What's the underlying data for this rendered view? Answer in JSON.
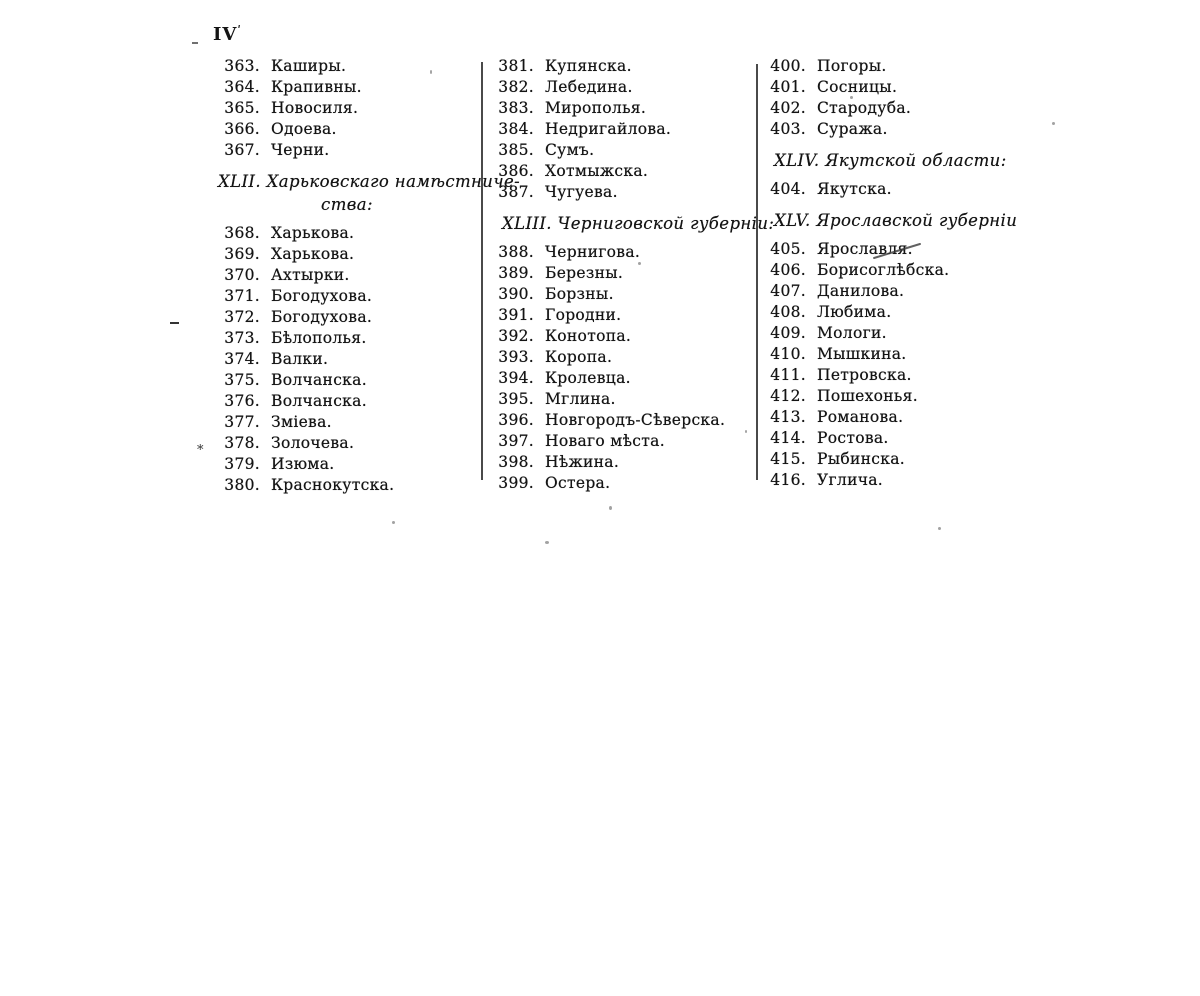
{
  "page": {
    "number": "IV"
  },
  "marginalia": {
    "asterisk": "*"
  },
  "columns": [
    {
      "items": [
        {
          "type": "entry",
          "num": "363.",
          "name": "Каширы."
        },
        {
          "type": "entry",
          "num": "364.",
          "name": "Крапивны."
        },
        {
          "type": "entry",
          "num": "365.",
          "name": "Новосиля."
        },
        {
          "type": "entry",
          "num": "366.",
          "name": "Одоева."
        },
        {
          "type": "entry",
          "num": "367.",
          "name": "Черни."
        },
        {
          "type": "header",
          "line1": "XLII. Харьковскаго намѣстниче-",
          "line2": "ства:"
        },
        {
          "type": "entry",
          "num": "368.",
          "name": "Харькова."
        },
        {
          "type": "entry",
          "num": "369.",
          "name": "Харькова."
        },
        {
          "type": "entry",
          "num": "370.",
          "name": "Ахтырки."
        },
        {
          "type": "entry",
          "num": "371.",
          "name": "Богодухова."
        },
        {
          "type": "entry",
          "num": "372.",
          "name": "Богодухова."
        },
        {
          "type": "entry",
          "num": "373.",
          "name": "Бѣлополья."
        },
        {
          "type": "entry",
          "num": "374.",
          "name": "Валки."
        },
        {
          "type": "entry",
          "num": "375.",
          "name": "Волчанска."
        },
        {
          "type": "entry",
          "num": "376.",
          "name": "Волчанска."
        },
        {
          "type": "entry",
          "num": "377.",
          "name": "Зміева."
        },
        {
          "type": "entry",
          "num": "378.",
          "name": "Золочева."
        },
        {
          "type": "entry",
          "num": "379.",
          "name": "Изюма."
        },
        {
          "type": "entry",
          "num": "380.",
          "name": "Краснокутска."
        }
      ]
    },
    {
      "items": [
        {
          "type": "entry",
          "num": "381.",
          "name": "Купянска."
        },
        {
          "type": "entry",
          "num": "382.",
          "name": "Лебедина."
        },
        {
          "type": "entry",
          "num": "383.",
          "name": "Мирополья."
        },
        {
          "type": "entry",
          "num": "384.",
          "name": "Недригайлова."
        },
        {
          "type": "entry",
          "num": "385.",
          "name": "Сумъ."
        },
        {
          "type": "entry",
          "num": "386.",
          "name": "Хотмыжска."
        },
        {
          "type": "entry",
          "num": "387.",
          "name": "Чугуева."
        },
        {
          "type": "header",
          "line1": "XLIII. Черниговской губерніи:"
        },
        {
          "type": "entry",
          "num": "388.",
          "name": "Чернигова."
        },
        {
          "type": "entry",
          "num": "389.",
          "name": "Березны."
        },
        {
          "type": "entry",
          "num": "390.",
          "name": "Борзны."
        },
        {
          "type": "entry",
          "num": "391.",
          "name": "Городни."
        },
        {
          "type": "entry",
          "num": "392.",
          "name": "Конотопа."
        },
        {
          "type": "entry",
          "num": "393.",
          "name": "Коропа."
        },
        {
          "type": "entry",
          "num": "394.",
          "name": "Кролевца."
        },
        {
          "type": "entry",
          "num": "395.",
          "name": "Мглина."
        },
        {
          "type": "entry",
          "num": "396.",
          "name": "Новгородъ-Сѣверска."
        },
        {
          "type": "entry",
          "num": "397.",
          "name": "Новаго мѣста."
        },
        {
          "type": "entry",
          "num": "398.",
          "name": "Нѣжина."
        },
        {
          "type": "entry",
          "num": "399.",
          "name": "Остера."
        }
      ]
    },
    {
      "items": [
        {
          "type": "entry",
          "num": "400.",
          "name": "Погоры."
        },
        {
          "type": "entry",
          "num": "401.",
          "name": "Сосницы."
        },
        {
          "type": "entry",
          "num": "402.",
          "name": "Стародуба."
        },
        {
          "type": "entry",
          "num": "403.",
          "name": "Суража."
        },
        {
          "type": "header",
          "line1": "XLIV. Якутской области:"
        },
        {
          "type": "entry",
          "num": "404.",
          "name": "Якутска."
        },
        {
          "type": "header",
          "line1": "XLV. Ярославской губерніи"
        },
        {
          "type": "entry",
          "num": "405.",
          "name": "Ярославля."
        },
        {
          "type": "entry",
          "num": "406.",
          "name": "Борисоглѣбска."
        },
        {
          "type": "entry",
          "num": "407.",
          "name": "Данилова."
        },
        {
          "type": "entry",
          "num": "408.",
          "name": "Любима."
        },
        {
          "type": "entry",
          "num": "409.",
          "name": "Мологи."
        },
        {
          "type": "entry",
          "num": "410.",
          "name": "Мышкина."
        },
        {
          "type": "entry",
          "num": "411.",
          "name": "Петровска."
        },
        {
          "type": "entry",
          "num": "412.",
          "name": "Пошехонья."
        },
        {
          "type": "entry",
          "num": "413.",
          "name": "Романова."
        },
        {
          "type": "entry",
          "num": "414.",
          "name": "Ростова."
        },
        {
          "type": "entry",
          "num": "415.",
          "name": "Рыбинска."
        },
        {
          "type": "entry",
          "num": "416.",
          "name": "Углича."
        }
      ]
    }
  ]
}
